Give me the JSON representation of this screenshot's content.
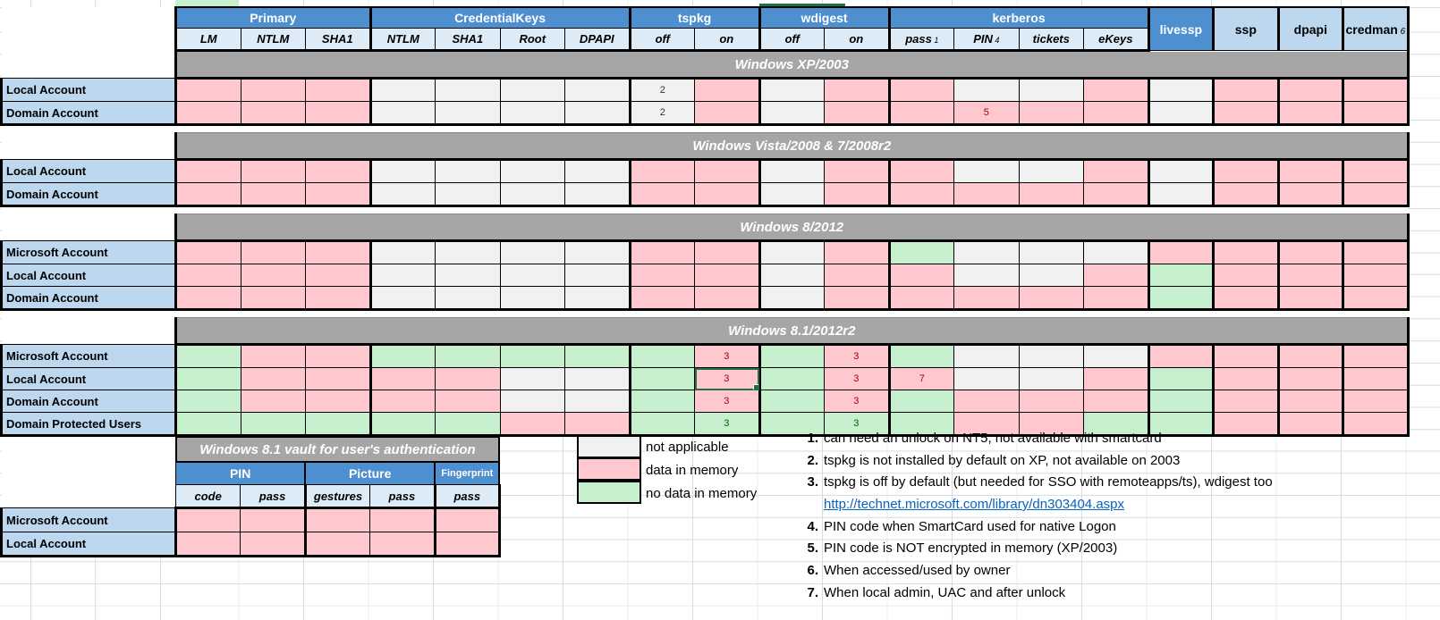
{
  "palette": {
    "header_blue": "#4E8FD0",
    "subheader_blue": "#DDEBF7",
    "label_blue": "#BDD7EE",
    "section_bar_gray": "#A6A6A6",
    "data_in_memory_pink": "#FFC7CE",
    "no_data_green": "#C6EFCE",
    "not_applicable_gray": "#F1F1F2",
    "note_red_text": "#9C0006",
    "note_green_text": "#006100",
    "link_blue": "#0563C1",
    "selection_green": "#1E7145"
  },
  "matrix": {
    "column_groups": [
      {
        "label": "Primary",
        "span": 3,
        "style": "dark"
      },
      {
        "label": "CredentialKeys",
        "span": 4,
        "style": "dark"
      },
      {
        "label": "tspkg",
        "span": 2,
        "style": "dark"
      },
      {
        "label": "wdigest",
        "span": 2,
        "style": "dark"
      },
      {
        "label": "kerberos",
        "span": 4,
        "style": "dark"
      },
      {
        "label": "livessp",
        "span": 1,
        "style": "dark",
        "tall": true
      },
      {
        "label": "ssp",
        "span": 1,
        "style": "light",
        "tall": true
      },
      {
        "label": "dpapi",
        "span": 1,
        "style": "light",
        "tall": true
      },
      {
        "label": "credman",
        "sup": "6",
        "span": 1,
        "style": "light",
        "tall": true
      }
    ],
    "subheaders": [
      {
        "label": "LM"
      },
      {
        "label": "NTLM"
      },
      {
        "label": "SHA1"
      },
      {
        "label": "NTLM"
      },
      {
        "label": "SHA1"
      },
      {
        "label": "Root"
      },
      {
        "label": "DPAPI"
      },
      {
        "label": "off"
      },
      {
        "label": "on"
      },
      {
        "label": "off"
      },
      {
        "label": "on"
      },
      {
        "label": "pass",
        "sup": "1"
      },
      {
        "label": "PIN",
        "sup": "4"
      },
      {
        "label": "tickets"
      },
      {
        "label": "eKeys"
      }
    ],
    "group_boundaries_after": [
      2,
      6,
      8,
      10,
      14,
      15,
      16,
      17,
      18
    ],
    "legend_key": {
      "p": "data in memory",
      "g": "no data in memory",
      "n": "not applicable"
    },
    "sections": [
      {
        "title": "Windows XP/2003",
        "rows": [
          {
            "label": "Local Account",
            "cells": [
              "p",
              "p",
              "p",
              "n",
              "n",
              "n",
              "n",
              {
                "s": "n",
                "note": "2"
              },
              "p",
              "n",
              "p",
              "p",
              "n",
              "n",
              "p",
              "n",
              "p",
              "p",
              "p"
            ]
          },
          {
            "label": "Domain Account",
            "cells": [
              "p",
              "p",
              "p",
              "n",
              "n",
              "n",
              "n",
              {
                "s": "n",
                "note": "2"
              },
              "p",
              "n",
              "p",
              "p",
              {
                "s": "p",
                "note": "5"
              },
              "p",
              "p",
              "n",
              "p",
              "p",
              "p"
            ]
          }
        ]
      },
      {
        "title": "Windows Vista/2008 & 7/2008r2",
        "rows": [
          {
            "label": "Local Account",
            "cells": [
              "p",
              "p",
              "p",
              "n",
              "n",
              "n",
              "n",
              "p",
              "p",
              "n",
              "p",
              "p",
              "n",
              "n",
              "p",
              "n",
              "p",
              "p",
              "p"
            ]
          },
          {
            "label": "Domain Account",
            "cells": [
              "p",
              "p",
              "p",
              "n",
              "n",
              "n",
              "n",
              "p",
              "p",
              "n",
              "p",
              "p",
              "p",
              "p",
              "p",
              "n",
              "p",
              "p",
              "p"
            ]
          }
        ]
      },
      {
        "title": "Windows 8/2012",
        "rows": [
          {
            "label": "Microsoft Account",
            "cells": [
              "p",
              "p",
              "p",
              "n",
              "n",
              "n",
              "n",
              "p",
              "p",
              "n",
              "p",
              "g",
              "n",
              "n",
              "n",
              "p",
              "p",
              "p",
              "p"
            ]
          },
          {
            "label": "Local Account",
            "cells": [
              "p",
              "p",
              "p",
              "n",
              "n",
              "n",
              "n",
              "p",
              "p",
              "n",
              "p",
              "p",
              "n",
              "n",
              "p",
              "g",
              "p",
              "p",
              "p"
            ]
          },
          {
            "label": "Domain Account",
            "cells": [
              "p",
              "p",
              "p",
              "n",
              "n",
              "n",
              "n",
              "p",
              "p",
              "n",
              "p",
              "p",
              "p",
              "p",
              "p",
              "g",
              "p",
              "p",
              "p"
            ]
          }
        ]
      },
      {
        "title": "Windows 8.1/2012r2",
        "rows": [
          {
            "label": "Microsoft Account",
            "cells": [
              "g",
              "p",
              "p",
              "g",
              "g",
              "g",
              "g",
              "g",
              {
                "s": "p",
                "note": "3"
              },
              "g",
              {
                "s": "p",
                "note": "3"
              },
              "g",
              "n",
              "n",
              "n",
              "p",
              "p",
              "p",
              "p"
            ]
          },
          {
            "label": "Local Account",
            "cells": [
              "g",
              "p",
              "p",
              "p",
              "p",
              "n",
              "n",
              "g",
              {
                "s": "p",
                "note": "3",
                "selected": true
              },
              "g",
              {
                "s": "p",
                "note": "3"
              },
              {
                "s": "p",
                "note": "7"
              },
              "n",
              "n",
              "p",
              "g",
              "p",
              "p",
              "p"
            ]
          },
          {
            "label": "Domain Account",
            "cells": [
              "g",
              "p",
              "p",
              "p",
              "p",
              "n",
              "n",
              "g",
              {
                "s": "p",
                "note": "3"
              },
              "g",
              {
                "s": "p",
                "note": "3"
              },
              "g",
              "p",
              "p",
              "p",
              "g",
              "p",
              "p",
              "p"
            ]
          },
          {
            "label": "Domain Protected Users",
            "cells": [
              "g",
              "g",
              "g",
              "g",
              "g",
              "p",
              "p",
              "g",
              {
                "s": "g",
                "note": "3"
              },
              "g",
              {
                "s": "g",
                "note": "3"
              },
              "g",
              "p",
              "p",
              "g",
              "g",
              "p",
              "p",
              "p"
            ]
          }
        ]
      }
    ]
  },
  "vault": {
    "title": "Windows 8.1 vault for user's authentication",
    "column_groups": [
      {
        "label": "PIN",
        "span": 2
      },
      {
        "label": "Picture",
        "span": 2
      },
      {
        "label": "Fingerprint",
        "span": 1,
        "small": true
      }
    ],
    "subheaders": [
      "code",
      "pass",
      "gestures",
      "pass",
      "pass"
    ],
    "rows": [
      {
        "label": "Microsoft Account",
        "cells": [
          "p",
          "p",
          "p",
          "p",
          "p"
        ]
      },
      {
        "label": "Local Account",
        "cells": [
          "p",
          "p",
          "p",
          "p",
          "p"
        ]
      }
    ]
  },
  "legend": [
    {
      "state": "n",
      "label": "not applicable"
    },
    {
      "state": "p",
      "label": "data in memory"
    },
    {
      "state": "g",
      "label": "no data in memory"
    }
  ],
  "notes": [
    {
      "num": "1.",
      "text": "can need an unlock on NT5, not available with smartcard"
    },
    {
      "num": "2.",
      "text": "tspkg is not installed by default on XP, not available on 2003"
    },
    {
      "num": "3.",
      "text": "tspkg is off by default (but needed for SSO with remoteapps/ts), wdigest too"
    },
    {
      "link": "http://technet.microsoft.com/library/dn303404.aspx"
    },
    {
      "num": "4.",
      "text": "PIN code when SmartCard used for native Logon"
    },
    {
      "num": "5.",
      "text": "PIN code is NOT encrypted in memory (XP/2003)"
    },
    {
      "num": "6.",
      "text": "When accessed/used by owner"
    },
    {
      "num": "7.",
      "text": "When local admin, UAC and after unlock"
    }
  ]
}
